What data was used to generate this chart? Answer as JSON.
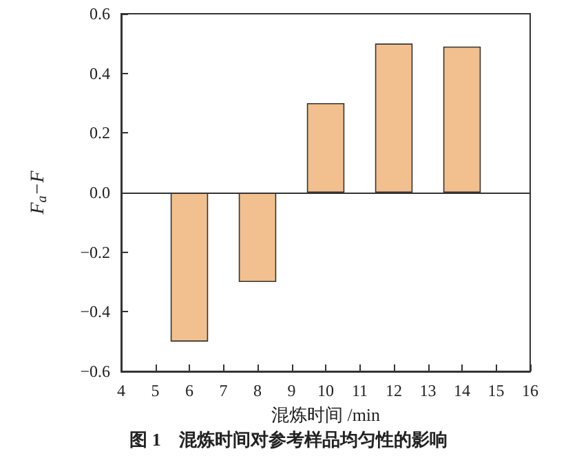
{
  "chart_data": {
    "type": "bar",
    "title": "图 1　混炼时间对参考样品均匀性的影响",
    "xlabel": "混炼时间 /min",
    "ylabel": "F$_{a}$−F",
    "x": [
      6,
      8,
      10,
      12,
      14
    ],
    "values": [
      -0.5,
      -0.3,
      0.3,
      0.5,
      0.49
    ],
    "color": "#f2c08e",
    "xlim": [
      4,
      16
    ],
    "xticks": [
      4,
      5,
      6,
      7,
      8,
      9,
      10,
      11,
      12,
      13,
      14,
      15,
      16
    ],
    "ylim": [
      -0.6,
      0.6
    ],
    "yticks": [
      {
        "value": -0.6,
        "label": "−0.6"
      },
      {
        "value": -0.4,
        "label": "−0.4"
      },
      {
        "value": -0.2,
        "label": "−0.2"
      },
      {
        "value": 0,
        "label": "0.0"
      },
      {
        "value": 0.2,
        "label": "0.2"
      },
      {
        "value": 0.4,
        "label": "0.4"
      },
      {
        "value": 0.6,
        "label": "0.6"
      }
    ],
    "ref_lines": [
      {
        "axis": "y",
        "value": 0
      }
    ],
    "grid": false
  }
}
